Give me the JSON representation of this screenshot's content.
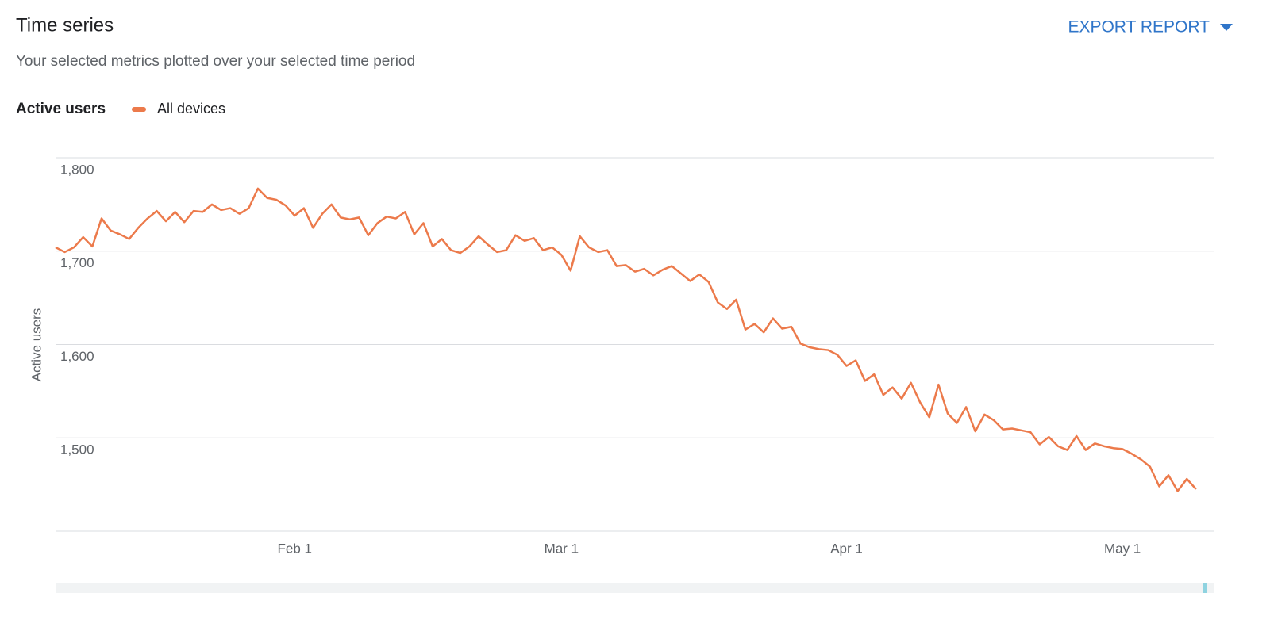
{
  "header": {
    "title": "Time series",
    "subtitle": "Your selected metrics plotted over your selected time period",
    "export_button": "EXPORT REPORT"
  },
  "chart_data": {
    "type": "line",
    "legend_title": "Active users",
    "ylabel": "Active users",
    "x": [
      6,
      7,
      8,
      9,
      10,
      11,
      12,
      13,
      14,
      15,
      16,
      17,
      18,
      19,
      20,
      21,
      22,
      23,
      24,
      25,
      26,
      27,
      28,
      29,
      30,
      31,
      32,
      33,
      34,
      35,
      36,
      37,
      38,
      39,
      40,
      41,
      42,
      43,
      44,
      45,
      46,
      47,
      48,
      49,
      50,
      51,
      52,
      53,
      54,
      55,
      56,
      57,
      58,
      59,
      60,
      61,
      62,
      63,
      64,
      65,
      66,
      67,
      68,
      69,
      70,
      71,
      72,
      73,
      74,
      75,
      76,
      77,
      78,
      79,
      80,
      81,
      82,
      83,
      84,
      85,
      86,
      87,
      88,
      89,
      90,
      91,
      92,
      93,
      94,
      95,
      96,
      97,
      98,
      99,
      100,
      101,
      102,
      103,
      104,
      105,
      106,
      107,
      108,
      109,
      110,
      111,
      112,
      113,
      114,
      115,
      116,
      117,
      118,
      119,
      120,
      121,
      122,
      123,
      124,
      125,
      126,
      127,
      128,
      129,
      130
    ],
    "series": [
      {
        "name": "All devices",
        "color": "#ec7a4b",
        "values": [
          1704,
          1699,
          1704,
          1715,
          1705,
          1735,
          1722,
          1718,
          1713,
          1725,
          1735,
          1743,
          1732,
          1742,
          1731,
          1743,
          1742,
          1750,
          1744,
          1746,
          1740,
          1746,
          1767,
          1757,
          1755,
          1749,
          1738,
          1746,
          1725,
          1740,
          1750,
          1736,
          1734,
          1736,
          1717,
          1730,
          1737,
          1735,
          1742,
          1718,
          1730,
          1705,
          1713,
          1701,
          1698,
          1705,
          1716,
          1707,
          1699,
          1701,
          1717,
          1711,
          1714,
          1701,
          1704,
          1696,
          1679,
          1716,
          1704,
          1699,
          1701,
          1684,
          1685,
          1678,
          1681,
          1674,
          1680,
          1684,
          1676,
          1668,
          1675,
          1667,
          1645,
          1638,
          1648,
          1616,
          1622,
          1613,
          1628,
          1617,
          1619,
          1601,
          1597,
          1595,
          1594,
          1589,
          1577,
          1583,
          1561,
          1568,
          1546,
          1554,
          1542,
          1559,
          1538,
          1522,
          1557,
          1526,
          1516,
          1533,
          1507,
          1525,
          1519,
          1509,
          1510,
          1508,
          1506,
          1493,
          1501,
          1491,
          1487,
          1502,
          1487,
          1494,
          1491,
          1489,
          1488,
          1483,
          1477,
          1469,
          1448,
          1460,
          1443,
          1456,
          1445
        ]
      }
    ],
    "xlim": [
      6,
      132
    ],
    "xticks": [
      {
        "value": 32,
        "label": "Feb 1"
      },
      {
        "value": 61,
        "label": "Mar 1"
      },
      {
        "value": 92,
        "label": "Apr 1"
      },
      {
        "value": 122,
        "label": "May 1"
      }
    ],
    "ylim": [
      1400,
      1800
    ],
    "yticks": [
      {
        "value": 1500,
        "label": "1,500"
      },
      {
        "value": 1600,
        "label": "1,600"
      },
      {
        "value": 1700,
        "label": "1,700"
      },
      {
        "value": 1800,
        "label": "1,800"
      }
    ],
    "grid": true
  }
}
